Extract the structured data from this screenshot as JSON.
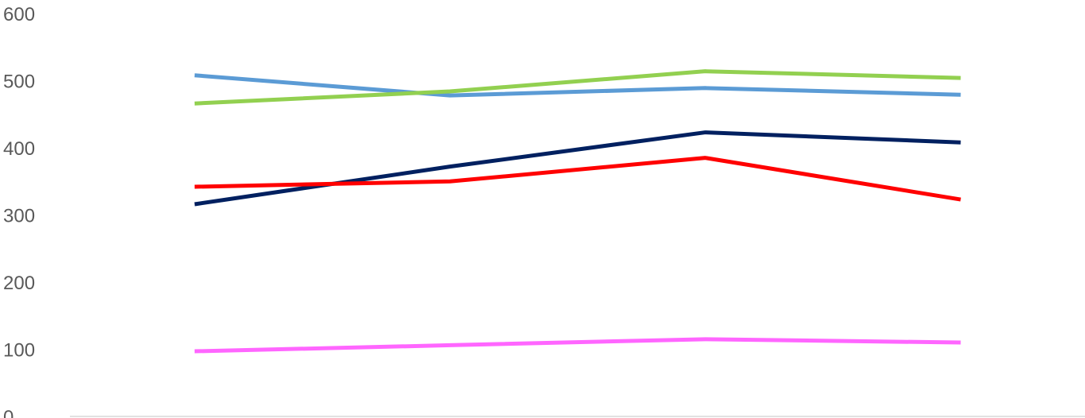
{
  "chart_data": {
    "type": "line",
    "categories": [
      "",
      "",
      "",
      ""
    ],
    "ylim": [
      0,
      600
    ],
    "yticks": [
      "0",
      "100",
      "200",
      "300",
      "400",
      "500",
      "600"
    ],
    "grid": false,
    "legend": "none",
    "series": [
      {
        "color": "#5b9bd5",
        "values": [
          508,
          478,
          489,
          479
        ]
      },
      {
        "color": "#92d050",
        "values": [
          466,
          484,
          514,
          504
        ]
      },
      {
        "color": "#002060",
        "values": [
          316,
          372,
          423,
          408
        ]
      },
      {
        "color": "#ff0000",
        "values": [
          342,
          350,
          385,
          323
        ]
      },
      {
        "color": "#ff66ff",
        "values": [
          97,
          106,
          115,
          110
        ]
      }
    ]
  }
}
